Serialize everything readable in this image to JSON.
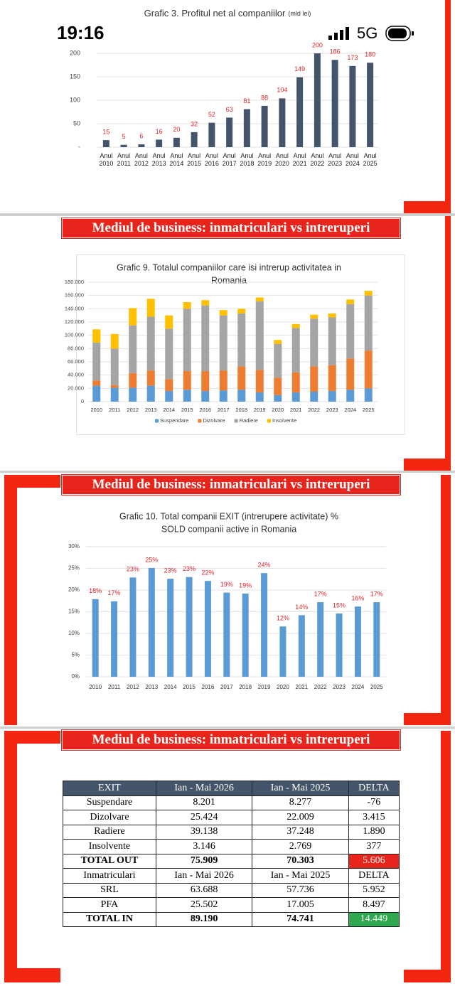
{
  "status_bar": {
    "time": "19:16",
    "network": "5G"
  },
  "banners": [
    "Mediul de business: inmatriculari vs intreruperi",
    "Mediul de business: inmatriculari vs intreruperi",
    "Mediul de business: inmatriculari vs intreruperi"
  ],
  "chart_data": [
    {
      "type": "bar",
      "title": "Grafic 3. Profitul net al companiilor",
      "unit": "(mld lei)",
      "categories": [
        "Anul 2010",
        "Anul 2011",
        "Anul 2012",
        "Anul 2013",
        "Anul 2014",
        "Anul 2015",
        "Anul 2016",
        "Anul 2017",
        "Anul 2018",
        "Anul 2019",
        "Anul 2020",
        "Anul 2021",
        "Anul 2022",
        "Anul 2023",
        "Anul 2024",
        "Anul 2025"
      ],
      "values": [
        15,
        5,
        6,
        16,
        20,
        32,
        52,
        63,
        81,
        88,
        104,
        149,
        200,
        186,
        173,
        180
      ],
      "color": "#44546a",
      "label_color": "#d9262b",
      "ylim": [
        0,
        200
      ],
      "yticks": [
        {
          "value": 0,
          "label": "-"
        },
        50,
        100,
        150,
        200
      ],
      "grid": true
    },
    {
      "type": "stacked_bar",
      "title_lines": [
        "Grafic 9. Totalul companiilor care isi intrerup activitatea in",
        "Romania"
      ],
      "categories": [
        "2010",
        "2011",
        "2012",
        "2013",
        "2014",
        "2015",
        "2016",
        "2017",
        "2018",
        "2019",
        "2020",
        "2021",
        "2022",
        "2023",
        "2024",
        "2025"
      ],
      "series": [
        {
          "name": "Suspendare",
          "color": "#5b9bd5",
          "values": [
            24000,
            21000,
            21000,
            24000,
            16000,
            18000,
            16000,
            17000,
            18000,
            14000,
            10000,
            14000,
            15000,
            16000,
            18000,
            20000
          ]
        },
        {
          "name": "Dizolvare",
          "color": "#ed7d31",
          "values": [
            8000,
            4000,
            22000,
            23000,
            18000,
            28000,
            30000,
            30000,
            35000,
            34000,
            26000,
            30000,
            38000,
            39000,
            47000,
            57000
          ]
        },
        {
          "name": "Radiere",
          "color": "#a5a5a5",
          "values": [
            57000,
            55000,
            72000,
            81000,
            76000,
            94000,
            99000,
            83000,
            80000,
            103000,
            51000,
            67000,
            72000,
            72000,
            82000,
            83000
          ]
        },
        {
          "name": "Insolvente",
          "color": "#ffc000",
          "values": [
            20000,
            22000,
            26000,
            27000,
            20000,
            10000,
            8000,
            8000,
            7000,
            6000,
            6000,
            6000,
            6000,
            6000,
            7000,
            7000
          ]
        }
      ],
      "ylim": [
        0,
        180000
      ],
      "yticks": [
        0,
        {
          "value": 20000,
          "label": "20.000"
        },
        {
          "value": 40000,
          "label": "40.000"
        },
        {
          "value": 60000,
          "label": "60.000"
        },
        {
          "value": 80000,
          "label": "80.000"
        },
        {
          "value": 100000,
          "label": "100.000"
        },
        {
          "value": 120000,
          "label": "120.000"
        },
        {
          "value": 140000,
          "label": "140.000"
        },
        {
          "value": 160000,
          "label": "160.000"
        },
        {
          "value": 180000,
          "label": "180.000"
        }
      ],
      "grid": true,
      "legend": "bottom"
    },
    {
      "type": "bar",
      "title_lines": [
        "Grafic 10. Total companii EXIT (intrerupere activitate) %",
        "SOLD companii active in Romania"
      ],
      "categories": [
        "2010",
        "2011",
        "2012",
        "2013",
        "2014",
        "2015",
        "2016",
        "2017",
        "2018",
        "2019",
        "2020",
        "2021",
        "2022",
        "2023",
        "2024",
        "2025"
      ],
      "values": [
        17.9,
        17.4,
        22.9,
        25.1,
        22.6,
        23.0,
        22.1,
        19.4,
        19.2,
        23.9,
        11.6,
        14.2,
        17.2,
        14.6,
        16.2,
        17.2
      ],
      "value_labels": [
        "18%",
        "17%",
        "23%",
        "25%",
        "23%",
        "23%",
        "22%",
        "19%",
        "19%",
        "24%",
        "12%",
        "14%",
        "17%",
        "15%",
        "16%",
        "17%"
      ],
      "color": "#5b9bd5",
      "label_color": "#d9262b",
      "ylim": [
        0,
        30
      ],
      "yticks": [
        {
          "value": 0,
          "label": "0%"
        },
        {
          "value": 5,
          "label": "5%"
        },
        {
          "value": 10,
          "label": "10%"
        },
        {
          "value": 15,
          "label": "15%"
        },
        {
          "value": 20,
          "label": "20%"
        },
        {
          "value": 25,
          "label": "25%"
        },
        {
          "value": 30,
          "label": "30%"
        }
      ],
      "grid": true
    }
  ],
  "table": {
    "rows": [
      [
        "EXIT",
        "Ian - Mai 2026",
        "Ian - Mai 2025",
        "DELTA"
      ],
      [
        "Suspendare",
        "8.201",
        "8.277",
        "-76"
      ],
      [
        "Dizolvare",
        "25.424",
        "22.009",
        "3.415"
      ],
      [
        "Radiere",
        "39.138",
        "37.248",
        "1.890"
      ],
      [
        "Insolvente",
        "3.146",
        "2.769",
        "377"
      ],
      [
        "TOTAL OUT",
        "75.909",
        "70.303",
        "5.606"
      ],
      [
        "Inmatriculari",
        "Ian - Mai 2026",
        "Ian - Mai 2025",
        "DELTA"
      ],
      [
        "SRL",
        "63.688",
        "57.736",
        "5.952"
      ],
      [
        "PFA",
        "25.502",
        "17.005",
        "8.497"
      ],
      [
        "TOTAL IN",
        "89.190",
        "74.741",
        "14.449"
      ]
    ]
  }
}
